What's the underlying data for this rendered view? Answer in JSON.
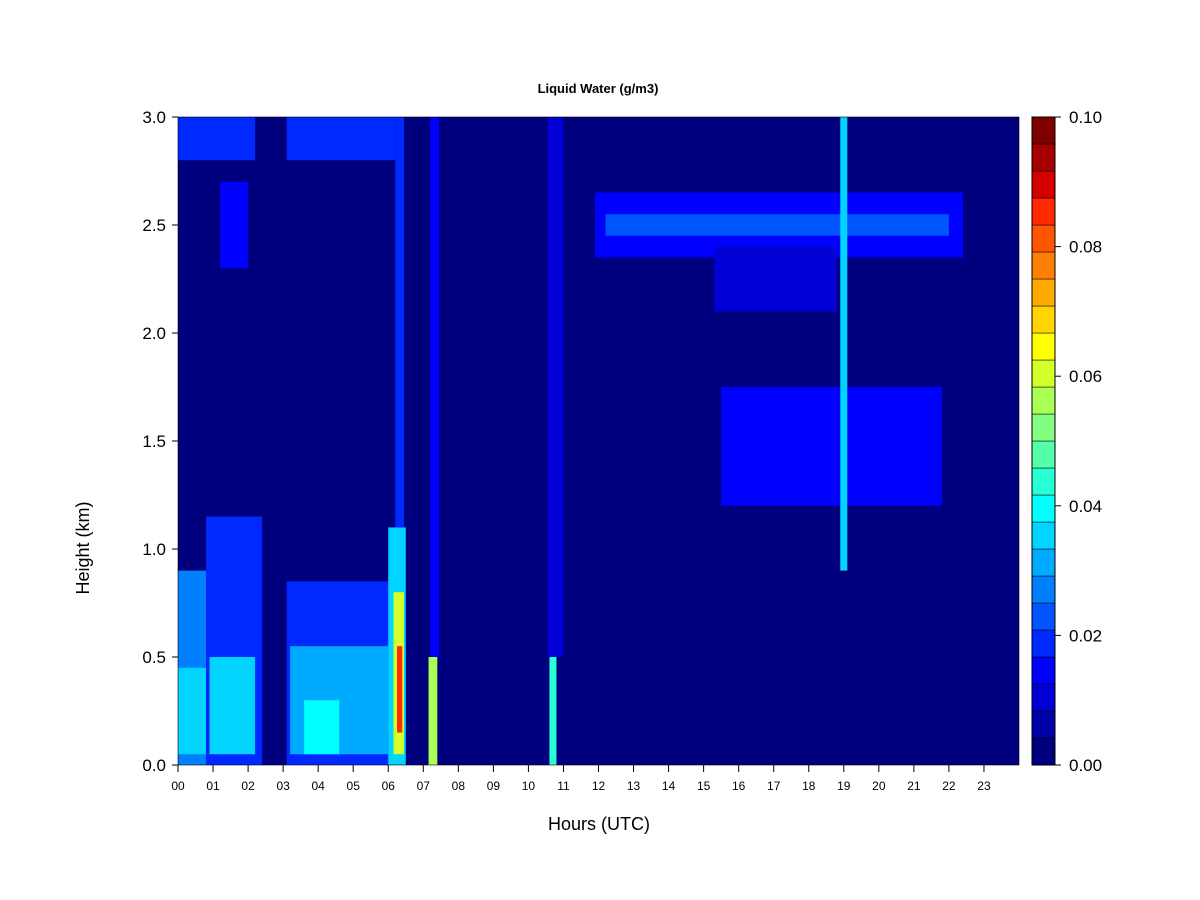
{
  "chart_data": {
    "type": "heatmap",
    "title": "Liquid Water (g/m3)",
    "xlabel": "Hours (UTC)",
    "ylabel": "Height (km)",
    "xlim": [
      0,
      24
    ],
    "ylim": [
      0,
      3.0
    ],
    "x_ticks": [
      "00",
      "01",
      "02",
      "03",
      "04",
      "05",
      "06",
      "07",
      "08",
      "09",
      "10",
      "11",
      "12",
      "13",
      "14",
      "15",
      "16",
      "17",
      "18",
      "19",
      "20",
      "21",
      "22",
      "23"
    ],
    "y_ticks": [
      "0.0",
      "0.5",
      "1.0",
      "1.5",
      "2.0",
      "2.5",
      "3.0"
    ],
    "colorbar": {
      "min": 0.0,
      "max": 0.1,
      "levels": 20,
      "ticks": [
        "0.00",
        "0.02",
        "0.04",
        "0.06",
        "0.08",
        "0.10"
      ],
      "colors": [
        "#00007F",
        "#0000A8",
        "#0000D4",
        "#0000FF",
        "#0029FF",
        "#0055FF",
        "#0080FF",
        "#00AAFF",
        "#00D4FF",
        "#00FFFF",
        "#29FFD4",
        "#55FFAA",
        "#80FF80",
        "#AAFF55",
        "#D4FF29",
        "#FFFF00",
        "#FFD400",
        "#FFAA00",
        "#FF8000",
        "#FF5500",
        "#FF2A00",
        "#D40000",
        "#A80000",
        "#800000"
      ]
    },
    "background_value": 0.0,
    "features": [
      {
        "x": [
          0.0,
          0.8
        ],
        "y": [
          0.0,
          0.9
        ],
        "value": 0.025
      },
      {
        "x": [
          0.0,
          0.8
        ],
        "y": [
          0.05,
          0.45
        ],
        "value": 0.035
      },
      {
        "x": [
          0.8,
          2.4
        ],
        "y": [
          0.0,
          1.15
        ],
        "value": 0.02
      },
      {
        "x": [
          0.9,
          2.2
        ],
        "y": [
          0.05,
          0.5
        ],
        "value": 0.035
      },
      {
        "x": [
          3.1,
          6.1
        ],
        "y": [
          0.0,
          0.85
        ],
        "value": 0.02
      },
      {
        "x": [
          3.2,
          6.0
        ],
        "y": [
          0.05,
          0.55
        ],
        "value": 0.032
      },
      {
        "x": [
          3.6,
          4.6
        ],
        "y": [
          0.05,
          0.3
        ],
        "value": 0.04
      },
      {
        "x": [
          6.0,
          6.5
        ],
        "y": [
          0.0,
          1.1
        ],
        "value": 0.035
      },
      {
        "x": [
          6.15,
          6.45
        ],
        "y": [
          0.05,
          0.8
        ],
        "value": 0.06
      },
      {
        "x": [
          6.25,
          6.4
        ],
        "y": [
          0.15,
          0.55
        ],
        "value": 0.085
      },
      {
        "x": [
          6.2,
          6.45
        ],
        "y": [
          1.1,
          3.0
        ],
        "value": 0.02
      },
      {
        "x": [
          7.15,
          7.4
        ],
        "y": [
          0.0,
          0.5
        ],
        "value": 0.055
      },
      {
        "x": [
          7.2,
          7.45
        ],
        "y": [
          0.5,
          3.0
        ],
        "value": 0.015
      },
      {
        "x": [
          10.6,
          10.8
        ],
        "y": [
          0.0,
          0.5
        ],
        "value": 0.045
      },
      {
        "x": [
          10.55,
          11.0
        ],
        "y": [
          0.5,
          3.0
        ],
        "value": 0.012
      },
      {
        "x": [
          0.0,
          2.2
        ],
        "y": [
          2.8,
          3.0
        ],
        "value": 0.018
      },
      {
        "x": [
          1.2,
          2.0
        ],
        "y": [
          2.3,
          2.7
        ],
        "value": 0.015
      },
      {
        "x": [
          3.1,
          6.2
        ],
        "y": [
          2.8,
          3.0
        ],
        "value": 0.02
      },
      {
        "x": [
          11.9,
          22.4
        ],
        "y": [
          2.35,
          2.65
        ],
        "value": 0.015
      },
      {
        "x": [
          12.2,
          22.0
        ],
        "y": [
          2.45,
          2.55
        ],
        "value": 0.022
      },
      {
        "x": [
          15.3,
          18.8
        ],
        "y": [
          2.1,
          2.4
        ],
        "value": 0.012
      },
      {
        "x": [
          15.5,
          21.8
        ],
        "y": [
          1.2,
          1.75
        ],
        "value": 0.015
      },
      {
        "x": [
          18.9,
          19.1
        ],
        "y": [
          0.9,
          3.0
        ],
        "value": 0.035
      }
    ]
  }
}
